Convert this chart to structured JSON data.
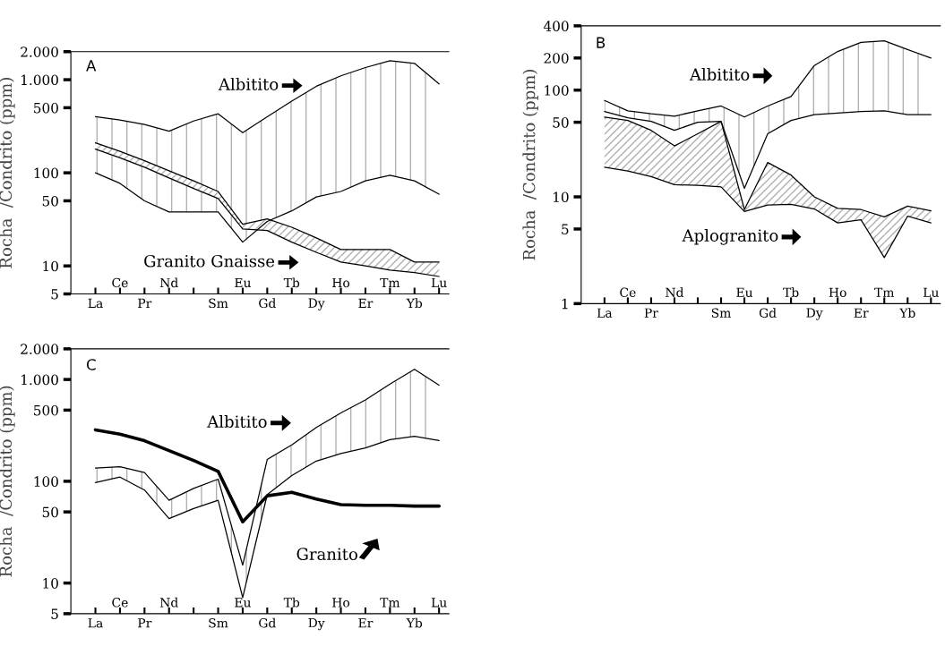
{
  "chart_data": [
    {
      "type": "line",
      "ylabel": "Rocha  /Condrito (ppm)",
      "log": "y",
      "ylim": [
        5,
        2000
      ],
      "yticks": [
        5,
        {
          "value": 10,
          "label": "10"
        },
        50,
        100,
        500,
        {
          "value": 1000,
          "label": "1.000"
        },
        {
          "value": 2000,
          "label": "2.000"
        }
      ],
      "categories": [
        "La",
        "Ce",
        "Pr",
        "Nd",
        null,
        "Sm",
        "Eu",
        "Gd",
        "Tb",
        "Dy",
        "Ho",
        "Er",
        "Tm",
        "Yb",
        "Lu"
      ],
      "series": [
        {
          "color": "#000000",
          "values": [
            400,
            370,
            330,
            280,
            360,
            430,
            270,
            400,
            590,
            850,
            1100,
            1350,
            1600,
            1500,
            900
          ]
        },
        {
          "color": "#000000",
          "values": [
            100,
            77,
            50,
            38,
            38,
            38,
            18,
            30,
            39,
            55,
            63,
            82,
            94,
            82,
            59
          ]
        },
        {
          "color": "#000000",
          "values": [
            210,
            170,
            135,
            105,
            82,
            63,
            28,
            32,
            26,
            20,
            15,
            15,
            15,
            11,
            11
          ]
        },
        {
          "color": "#000000",
          "values": [
            180,
            145,
            115,
            88,
            68,
            53,
            25,
            24,
            18,
            14,
            11,
            10,
            9,
            8.5,
            7.7
          ]
        }
      ],
      "annotations": [
        "A",
        "Albitito",
        "Granito Gnaisse"
      ]
    },
    {
      "type": "line",
      "ylabel": "Rocha  /Condrito (ppm)",
      "log": "y",
      "ylim": [
        1,
        400
      ],
      "yticks": [
        1,
        5,
        10,
        50,
        100,
        200,
        400
      ],
      "categories": [
        "La",
        "Ce",
        "Pr",
        "Nd",
        null,
        "Sm",
        "Eu",
        "Gd",
        "Tb",
        "Dy",
        "Ho",
        "Er",
        "Tm",
        "Yb",
        "Lu"
      ],
      "series": [
        {
          "color": "#000000",
          "values": [
            80,
            64,
            60,
            57,
            64,
            71,
            56,
            71,
            87,
            170,
            230,
            280,
            290,
            240,
            200
          ]
        },
        {
          "color": "#000000",
          "values": [
            63,
            55,
            51,
            42,
            50,
            51,
            12,
            39,
            52,
            59,
            61,
            63,
            64,
            59,
            59
          ]
        },
        {
          "color": "#000000",
          "values": [
            56,
            52,
            42,
            30,
            39,
            51,
            7.6,
            21,
            16,
            10,
            7.8,
            7.6,
            6.5,
            8.2,
            7.4
          ]
        },
        {
          "color": "#000000",
          "values": [
            19,
            17.5,
            15.5,
            13,
            12.8,
            12.4,
            7.3,
            8.4,
            8.5,
            7.7,
            5.7,
            6.1,
            2.7,
            6.6,
            5.7
          ]
        }
      ],
      "annotations": [
        "B",
        "Albitito",
        "Aplogranito"
      ]
    },
    {
      "type": "line",
      "ylabel": "Rocha  /Condrito (ppm)",
      "log": "y",
      "ylim": [
        5,
        2000
      ],
      "yticks": [
        5,
        10,
        50,
        100,
        500,
        {
          "value": 1000,
          "label": "1.000"
        },
        {
          "value": 2000,
          "label": "2.000"
        }
      ],
      "categories": [
        "La",
        "Ce",
        "Pr",
        "Nd",
        null,
        "Sm",
        "Eu",
        "Gd",
        "Tb",
        "Dy",
        "Ho",
        "Er",
        "Tm",
        "Yb",
        "Lu"
      ],
      "series": [
        {
          "color": "#000000",
          "values": [
            135,
            139,
            122,
            65,
            85,
            105,
            15,
            164,
            228,
            338,
            470,
            630,
            900,
            1260,
            880
          ]
        },
        {
          "color": "#000000",
          "values": [
            97,
            110,
            82,
            43,
            54,
            65,
            7.2,
            74,
            114,
            158,
            187,
            213,
            256,
            277,
            251
          ]
        },
        {
          "color": "#000000",
          "values": [
            320,
            290,
            250,
            200,
            160,
            125,
            40,
            72,
            78,
            67,
            59,
            58,
            58,
            57,
            57
          ]
        }
      ],
      "annotations": [
        "C",
        "Albitito",
        "Granito"
      ]
    }
  ]
}
